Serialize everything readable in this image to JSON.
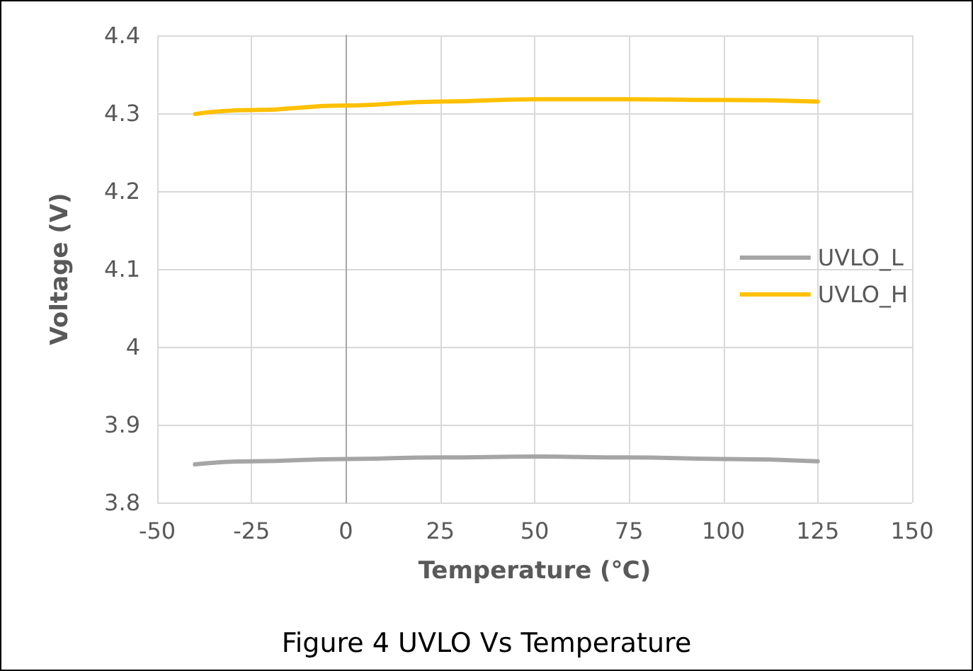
{
  "chart_data": {
    "type": "line",
    "title": "Figure 4 UVLO Vs Temperature",
    "xlabel": "Temperature (℃)",
    "ylabel": "Voltage (V)",
    "x": [
      -40,
      -25,
      0,
      25,
      50,
      75,
      100,
      125
    ],
    "series": [
      {
        "name": "UVLO_L",
        "color": "#a5a5a5",
        "values": [
          3.849,
          3.853,
          3.856,
          3.858,
          3.859,
          3.858,
          3.856,
          3.853
        ]
      },
      {
        "name": "UVLO_H",
        "color": "#ffc000",
        "values": [
          4.299,
          4.304,
          4.31,
          4.315,
          4.318,
          4.318,
          4.317,
          4.315
        ]
      }
    ],
    "xlim": [
      -50,
      150
    ],
    "xticks": [
      -50,
      -25,
      0,
      25,
      50,
      75,
      100,
      125,
      150
    ],
    "ylim": [
      3.8,
      4.4
    ],
    "yticks": [
      3.8,
      3.9,
      4,
      4.1,
      4.2,
      4.3,
      4.4
    ],
    "grid": true,
    "legend": "right",
    "marker": "none",
    "line_style": "solid"
  }
}
